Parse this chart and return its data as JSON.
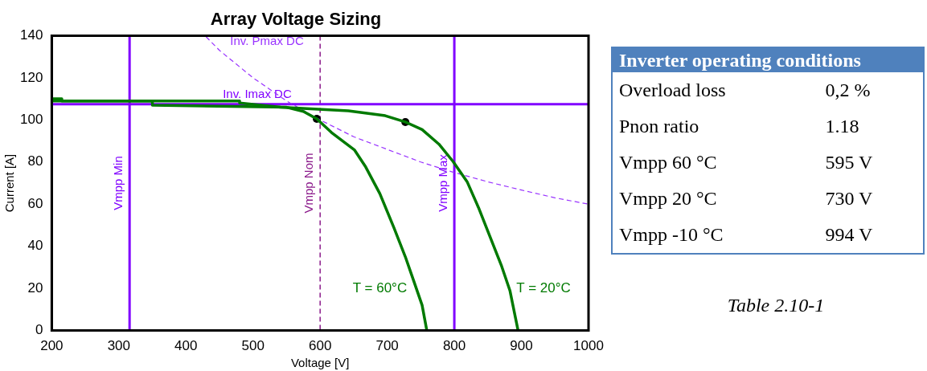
{
  "chart_data": [
    {
      "type": "line",
      "title": "Array Voltage Sizing",
      "xlabel": "Voltage [V]",
      "ylabel": "Current [A]",
      "xlim": [
        200,
        1000
      ],
      "ylim": [
        0,
        140
      ],
      "xticks": [
        200,
        300,
        400,
        500,
        600,
        700,
        800,
        900,
        1000
      ],
      "yticks": [
        0,
        20,
        40,
        60,
        80,
        100,
        120,
        140
      ],
      "grid": false,
      "legend": false,
      "marker": "none",
      "series": [
        {
          "name": "T = 60°C",
          "color": "#007a00",
          "x": [
            200,
            215,
            215,
            350,
            350,
            550,
            575,
            595,
            617,
            651,
            668,
            689,
            710,
            727,
            739,
            752,
            759
          ],
          "values": [
            110,
            110,
            109,
            109,
            107,
            106,
            104,
            100.5,
            94,
            85.8,
            77.6,
            65,
            48.8,
            35,
            24,
            12,
            0
          ]
        },
        {
          "name": "T = 20°C",
          "color": "#007a00",
          "x": [
            200,
            480,
            480,
            541,
            642,
            697,
            727,
            752,
            777,
            798,
            819,
            836,
            853,
            870,
            883,
            895
          ],
          "values": [
            109,
            109,
            108,
            106,
            104.3,
            102,
            99,
            95.4,
            88.5,
            80.3,
            70.7,
            58.4,
            44.7,
            31,
            18.8,
            0
          ]
        },
        {
          "name": "Inv. Pmax DC",
          "color": "#9933ff",
          "line_style": "dashed",
          "x": [
            430,
            450,
            500,
            550,
            600,
            650,
            700,
            750,
            800,
            850,
            900,
            950,
            1000
          ],
          "values": [
            139.5,
            133,
            120,
            109,
            100,
            92,
            86,
            80,
            75,
            70.6,
            66.7,
            63,
            60
          ]
        },
        {
          "type": "scatter",
          "color": "#000000",
          "marker": "circle",
          "x": [
            595,
            727
          ],
          "values": [
            100.5,
            99
          ]
        }
      ],
      "ref_lines": [
        {
          "axis": "x",
          "value": 316,
          "label": "Vmpp Min",
          "color": "#8000ff"
        },
        {
          "axis": "x",
          "value": 600,
          "label": "Vmpp Nom",
          "color": "#8b1a8b",
          "line_style": "dashed"
        },
        {
          "axis": "x",
          "value": 800,
          "label": "Vmpp Max",
          "color": "#8000ff"
        },
        {
          "axis": "y",
          "value": 107.5,
          "label": "Inv. Imax DC",
          "color": "#8000ff"
        }
      ]
    },
    {
      "type": "other",
      "title": "Inverter operating conditions",
      "categories": [
        "Overload loss",
        "Pnon ratio",
        "Vmpp 60 °C",
        "Vmpp 20 °C",
        "Vmpp -10 °C"
      ],
      "value_labels": [
        "0,2 %",
        "1.18",
        "595 V",
        "730 V",
        "994 V"
      ],
      "annotations": [
        "Table 2.10-1"
      ]
    }
  ]
}
